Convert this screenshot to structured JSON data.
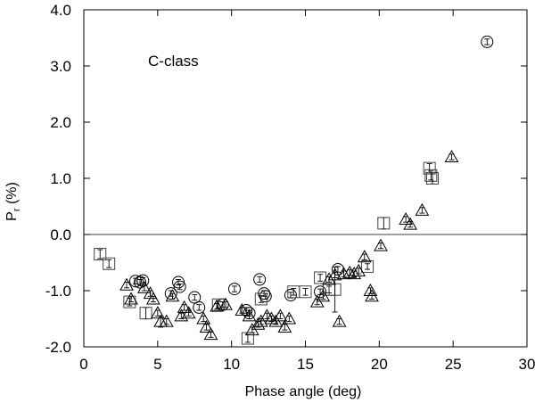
{
  "chart_data": {
    "type": "scatter",
    "title": "",
    "annotation": "C-class",
    "xlabel": "Phase angle (deg)",
    "ylabel": {
      "main": "P",
      "sub": "r",
      "rest": " (%)"
    },
    "xlim": [
      0,
      30
    ],
    "ylim": [
      -2.0,
      4.0
    ],
    "x_ticks": [
      0,
      5,
      10,
      15,
      20,
      25,
      30
    ],
    "x_tick_labels": [
      "0",
      "5",
      "10",
      "15",
      "20",
      "25",
      "30"
    ],
    "y_ticks": [
      -2.0,
      -1.0,
      0.0,
      1.0,
      2.0,
      3.0,
      4.0
    ],
    "y_tick_labels": [
      "-2.0",
      "-1.0",
      "0.0",
      "1.0",
      "2.0",
      "3.0",
      "4.0"
    ],
    "reference_line_y": 0.0,
    "grid": false,
    "legend": "none",
    "marker_color": "#000000",
    "series": [
      {
        "marker": "circle",
        "points": [
          [
            3.5,
            -0.83,
            0.05
          ],
          [
            3.8,
            -0.85,
            0.05
          ],
          [
            4.0,
            -0.82,
            0.05
          ],
          [
            6.4,
            -0.85,
            0.05
          ],
          [
            6.5,
            -0.93,
            0.05
          ],
          [
            5.9,
            -1.05,
            0.05
          ],
          [
            7.5,
            -1.12,
            0.05
          ],
          [
            7.8,
            -1.3,
            0.05
          ],
          [
            9.4,
            -1.25,
            0.05
          ],
          [
            10.2,
            -0.97,
            0.05
          ],
          [
            11.0,
            -1.35,
            0.05
          ],
          [
            11.2,
            -1.4,
            0.05
          ],
          [
            11.9,
            -0.8,
            0.05
          ],
          [
            12.2,
            -1.05,
            0.05
          ],
          [
            12.3,
            -1.1,
            0.05
          ],
          [
            14.0,
            -1.08,
            0.05
          ],
          [
            16.0,
            -1.02,
            0.05
          ],
          [
            17.2,
            -0.62,
            0.05
          ],
          [
            27.3,
            3.43,
            0.05
          ]
        ]
      },
      {
        "marker": "square",
        "points": [
          [
            1.1,
            -0.35,
            0.08
          ],
          [
            1.7,
            -0.52,
            0.07
          ],
          [
            3.1,
            -1.2,
            0.07
          ],
          [
            4.2,
            -1.4,
            0.1
          ],
          [
            9.1,
            -1.25,
            0.06
          ],
          [
            11.1,
            -1.85,
            0.07
          ],
          [
            12.0,
            -1.15,
            0.06
          ],
          [
            14.2,
            -1.02,
            0.06
          ],
          [
            15.0,
            -1.02,
            0.06
          ],
          [
            16.0,
            -0.77,
            0.06
          ],
          [
            16.6,
            -0.98,
            0.06
          ],
          [
            17.0,
            -0.98,
            0.4
          ],
          [
            19.2,
            -0.57,
            0.05
          ],
          [
            20.3,
            0.2,
            0.1
          ],
          [
            23.4,
            1.18,
            0.08
          ],
          [
            23.5,
            1.05,
            0.08
          ],
          [
            23.6,
            1.0,
            0.1
          ]
        ]
      },
      {
        "marker": "triangle",
        "points": [
          [
            2.9,
            -0.9,
            0.05
          ],
          [
            3.2,
            -1.15,
            0.05
          ],
          [
            4.1,
            -0.95,
            0.05
          ],
          [
            4.5,
            -1.05,
            0.05
          ],
          [
            4.7,
            -1.15,
            0.05
          ],
          [
            5.0,
            -1.4,
            0.05
          ],
          [
            5.2,
            -1.55,
            0.1
          ],
          [
            5.6,
            -1.55,
            0.05
          ],
          [
            6.0,
            -1.1,
            0.05
          ],
          [
            6.6,
            -1.45,
            0.05
          ],
          [
            6.8,
            -1.3,
            0.05
          ],
          [
            7.1,
            -1.4,
            0.05
          ],
          [
            8.1,
            -1.5,
            0.05
          ],
          [
            8.3,
            -1.65,
            0.05
          ],
          [
            8.6,
            -1.78,
            0.05
          ],
          [
            9.0,
            -1.28,
            0.05
          ],
          [
            9.6,
            -1.25,
            0.05
          ],
          [
            10.7,
            -1.35,
            0.05
          ],
          [
            11.2,
            -1.45,
            0.05
          ],
          [
            11.4,
            -1.7,
            0.05
          ],
          [
            11.8,
            -1.6,
            0.05
          ],
          [
            12.0,
            -1.55,
            0.05
          ],
          [
            12.4,
            -1.45,
            0.05
          ],
          [
            12.7,
            -1.5,
            0.05
          ],
          [
            13.0,
            -1.55,
            0.05
          ],
          [
            13.3,
            -1.45,
            0.05
          ],
          [
            13.6,
            -1.65,
            0.05
          ],
          [
            13.9,
            -1.5,
            0.05
          ],
          [
            15.8,
            -1.2,
            0.05
          ],
          [
            16.2,
            -1.1,
            0.05
          ],
          [
            16.6,
            -0.8,
            0.05
          ],
          [
            17.0,
            -0.72,
            0.05
          ],
          [
            17.3,
            -1.55,
            0.05
          ],
          [
            17.6,
            -0.7,
            0.05
          ],
          [
            18.0,
            -0.68,
            0.05
          ],
          [
            18.3,
            -0.7,
            0.05
          ],
          [
            18.6,
            -0.65,
            0.05
          ],
          [
            19.0,
            -0.4,
            0.05
          ],
          [
            19.4,
            -1.0,
            0.05
          ],
          [
            19.5,
            -1.1,
            0.05
          ],
          [
            20.1,
            -0.2,
            0.05
          ],
          [
            21.8,
            0.27,
            0.05
          ],
          [
            22.1,
            0.18,
            0.05
          ],
          [
            22.9,
            0.43,
            0.05
          ],
          [
            24.9,
            1.38,
            0.05
          ]
        ]
      }
    ]
  }
}
